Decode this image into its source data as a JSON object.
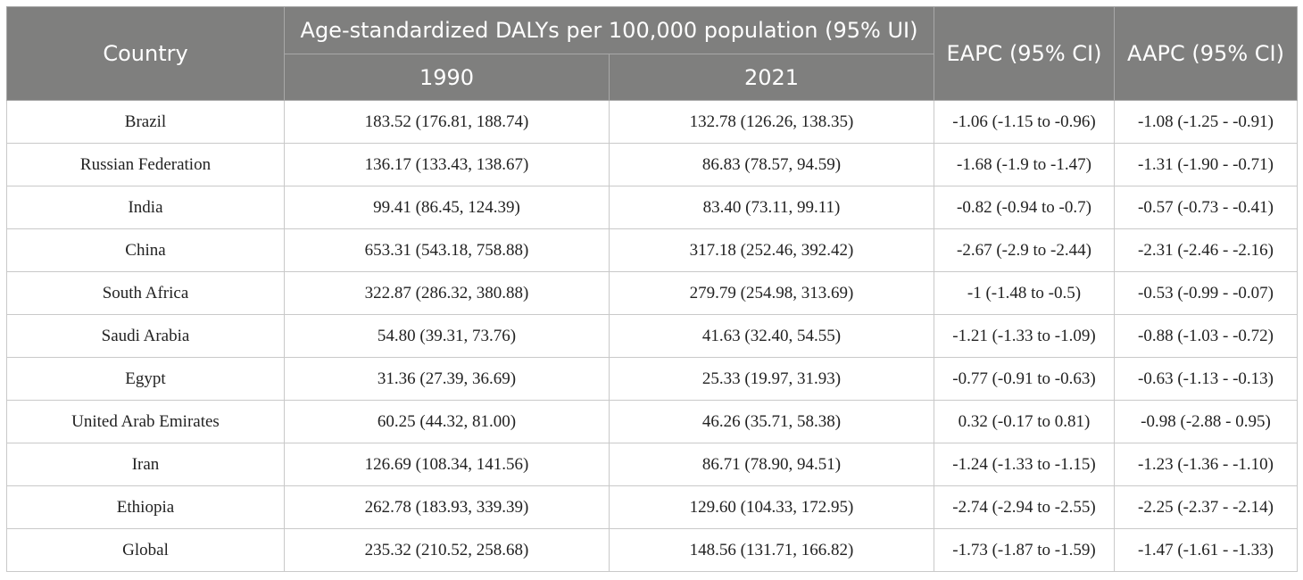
{
  "table": {
    "headers": {
      "country": "Country",
      "dalys_group": "Age-standardized DALYs per 100,000 population (95% UI)",
      "year_1990": "1990",
      "year_2021": "2021",
      "eapc": "EAPC (95% CI)",
      "aapc": "AAPC (95% CI)"
    },
    "rows": [
      {
        "country": "Brazil",
        "y1990": "183.52 (176.81, 188.74)",
        "y2021": "132.78 (126.26, 138.35)",
        "eapc": "-1.06 (-1.15 to -0.96)",
        "aapc": "-1.08 (-1.25 - -0.91)"
      },
      {
        "country": "Russian Federation",
        "y1990": "136.17 (133.43, 138.67)",
        "y2021": "86.83 (78.57, 94.59)",
        "eapc": "-1.68 (-1.9 to -1.47)",
        "aapc": "-1.31 (-1.90 - -0.71)"
      },
      {
        "country": "India",
        "y1990": "99.41 (86.45, 124.39)",
        "y2021": "83.40 (73.11, 99.11)",
        "eapc": "-0.82 (-0.94 to -0.7)",
        "aapc": "-0.57 (-0.73 - -0.41)"
      },
      {
        "country": "China",
        "y1990": "653.31 (543.18, 758.88)",
        "y2021": "317.18 (252.46, 392.42)",
        "eapc": "-2.67 (-2.9 to -2.44)",
        "aapc": "-2.31 (-2.46 - -2.16)"
      },
      {
        "country": "South Africa",
        "y1990": "322.87 (286.32, 380.88)",
        "y2021": "279.79 (254.98, 313.69)",
        "eapc": "-1 (-1.48 to -0.5)",
        "aapc": "-0.53 (-0.99 - -0.07)"
      },
      {
        "country": "Saudi Arabia",
        "y1990": "54.80 (39.31, 73.76)",
        "y2021": "41.63 (32.40, 54.55)",
        "eapc": "-1.21 (-1.33 to -1.09)",
        "aapc": "-0.88 (-1.03 - -0.72)"
      },
      {
        "country": "Egypt",
        "y1990": "31.36 (27.39, 36.69)",
        "y2021": "25.33 (19.97, 31.93)",
        "eapc": "-0.77 (-0.91 to -0.63)",
        "aapc": "-0.63 (-1.13 - -0.13)"
      },
      {
        "country": "United Arab Emirates",
        "y1990": "60.25 (44.32, 81.00)",
        "y2021": "46.26 (35.71, 58.38)",
        "eapc": "0.32 (-0.17 to 0.81)",
        "aapc": "-0.98 (-2.88 - 0.95)"
      },
      {
        "country": "Iran",
        "y1990": "126.69 (108.34, 141.56)",
        "y2021": "86.71 (78.90, 94.51)",
        "eapc": "-1.24 (-1.33 to -1.15)",
        "aapc": "-1.23 (-1.36 - -1.10)"
      },
      {
        "country": "Ethiopia",
        "y1990": "262.78 (183.93, 339.39)",
        "y2021": "129.60 (104.33, 172.95)",
        "eapc": "-2.74 (-2.94 to -2.55)",
        "aapc": "-2.25 (-2.37 - -2.14)"
      },
      {
        "country": "Global",
        "y1990": "235.32 (210.52, 258.68)",
        "y2021": "148.56 (131.71, 166.82)",
        "eapc": "-1.73 (-1.87 to -1.59)",
        "aapc": "-1.47 (-1.61 - -1.33)"
      }
    ]
  }
}
